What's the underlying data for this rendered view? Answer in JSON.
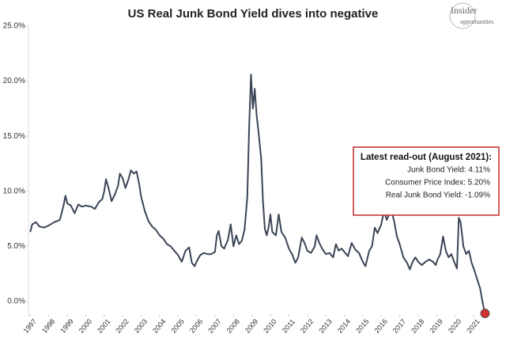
{
  "chart_data": {
    "type": "line",
    "title": "US Real Junk Bond Yield dives into negative",
    "logo": [
      "Insider",
      "opportunities"
    ],
    "annotation": {
      "title": "Latest read-out (August 2021):",
      "lines": [
        "Junk Bond Yield: 4.11%",
        "Consumer Price Index: 5.20%",
        "Real Junk Bond Yield: -1.09%"
      ]
    },
    "color": "#3b4556",
    "highlight_color": "#d0312d",
    "xlim": [
      1996.9,
      2021.9
    ],
    "xticks": [
      1997,
      1998,
      1999,
      2000,
      2001,
      2002,
      2003,
      2004,
      2005,
      2006,
      2007,
      2008,
      2009,
      2010,
      2011,
      2012,
      2013,
      2014,
      2015,
      2016,
      2017,
      2018,
      2019,
      2020,
      2021
    ],
    "ylim": [
      -1.4,
      25
    ],
    "yticks": [
      {
        "value": 0,
        "label": "0.0%"
      },
      {
        "value": 5,
        "label": "5.0%"
      },
      {
        "value": 10,
        "label": "10.0%"
      },
      {
        "value": 15,
        "label": "15.0%"
      },
      {
        "value": 20,
        "label": "20.0%"
      },
      {
        "value": 25,
        "label": "25.0%"
      }
    ],
    "x": [
      1997.0,
      1997.1,
      1997.3,
      1997.5,
      1997.75,
      1998.0,
      1998.3,
      1998.6,
      1998.8,
      1998.9,
      1999.0,
      1999.2,
      1999.4,
      1999.6,
      1999.8,
      2000.0,
      2000.3,
      2000.5,
      2000.7,
      2000.9,
      2001.0,
      2001.1,
      2001.25,
      2001.4,
      2001.6,
      2001.75,
      2001.85,
      2002.0,
      2002.15,
      2002.3,
      2002.45,
      2002.6,
      2002.75,
      2002.9,
      2003.0,
      2003.2,
      2003.4,
      2003.6,
      2003.8,
      2004.0,
      2004.2,
      2004.4,
      2004.6,
      2004.8,
      2005.0,
      2005.2,
      2005.4,
      2005.6,
      2005.75,
      2005.9,
      2006.0,
      2006.2,
      2006.4,
      2006.6,
      2006.8,
      2007.0,
      2007.1,
      2007.2,
      2007.35,
      2007.5,
      2007.7,
      2007.85,
      2008.0,
      2008.15,
      2008.3,
      2008.45,
      2008.6,
      2008.75,
      2008.85,
      2008.95,
      2009.05,
      2009.15,
      2009.25,
      2009.35,
      2009.5,
      2009.6,
      2009.7,
      2009.8,
      2009.9,
      2010.0,
      2010.1,
      2010.3,
      2010.45,
      2010.6,
      2010.8,
      2011.0,
      2011.2,
      2011.35,
      2011.5,
      2011.7,
      2011.85,
      2012.0,
      2012.2,
      2012.4,
      2012.5,
      2012.65,
      2012.8,
      2013.0,
      2013.2,
      2013.4,
      2013.55,
      2013.7,
      2013.85,
      2014.0,
      2014.2,
      2014.4,
      2014.6,
      2014.8,
      2015.0,
      2015.15,
      2015.35,
      2015.5,
      2015.65,
      2015.8,
      2016.0,
      2016.15,
      2016.3,
      2016.45,
      2016.55,
      2016.7,
      2016.85,
      2017.0,
      2017.2,
      2017.4,
      2017.55,
      2017.7,
      2017.85,
      2018.0,
      2018.2,
      2018.4,
      2018.6,
      2018.8,
      2018.95,
      2019.05,
      2019.2,
      2019.35,
      2019.5,
      2019.65,
      2019.8,
      2019.95,
      2020.1,
      2020.2,
      2020.3,
      2020.45,
      2020.6,
      2020.75,
      2020.9,
      2021.05,
      2021.2,
      2021.35,
      2021.5,
      2021.62
    ],
    "values": [
      6.3,
      7.0,
      7.2,
      6.8,
      6.7,
      6.9,
      7.2,
      7.4,
      8.7,
      9.6,
      8.9,
      8.7,
      8.0,
      8.8,
      8.6,
      8.7,
      8.6,
      8.4,
      9.0,
      9.3,
      10.0,
      11.1,
      10.2,
      9.1,
      9.8,
      10.5,
      11.6,
      11.2,
      10.3,
      11.0,
      11.9,
      11.6,
      11.8,
      10.6,
      9.5,
      8.2,
      7.3,
      6.8,
      6.5,
      6.0,
      5.7,
      5.2,
      5.0,
      4.6,
      4.2,
      3.6,
      4.6,
      4.9,
      3.5,
      3.2,
      3.6,
      4.2,
      4.4,
      4.3,
      4.3,
      4.5,
      6.0,
      6.4,
      5.0,
      4.8,
      5.6,
      7.0,
      5.0,
      6.0,
      5.2,
      5.5,
      6.5,
      9.5,
      16.0,
      20.6,
      17.5,
      19.3,
      17.0,
      15.5,
      13.0,
      9.0,
      6.6,
      6.0,
      6.7,
      7.9,
      6.3,
      6.0,
      7.9,
      6.3,
      5.8,
      4.8,
      4.2,
      3.5,
      4.0,
      5.8,
      5.3,
      4.6,
      4.4,
      5.0,
      6.0,
      5.3,
      4.8,
      4.3,
      4.4,
      4.0,
      5.2,
      4.6,
      4.8,
      4.5,
      4.1,
      5.3,
      4.7,
      4.4,
      3.6,
      3.2,
      4.6,
      5.0,
      6.7,
      6.2,
      7.0,
      8.2,
      7.4,
      8.0,
      8.2,
      7.3,
      5.9,
      5.2,
      4.0,
      3.5,
      2.9,
      3.6,
      4.0,
      3.6,
      3.3,
      3.6,
      3.8,
      3.6,
      3.3,
      3.8,
      4.3,
      5.9,
      4.6,
      4.0,
      4.3,
      3.6,
      3.0,
      7.6,
      7.2,
      5.0,
      4.3,
      4.6,
      3.5,
      2.8,
      2.0,
      1.2,
      -0.2,
      -1.09
    ]
  }
}
